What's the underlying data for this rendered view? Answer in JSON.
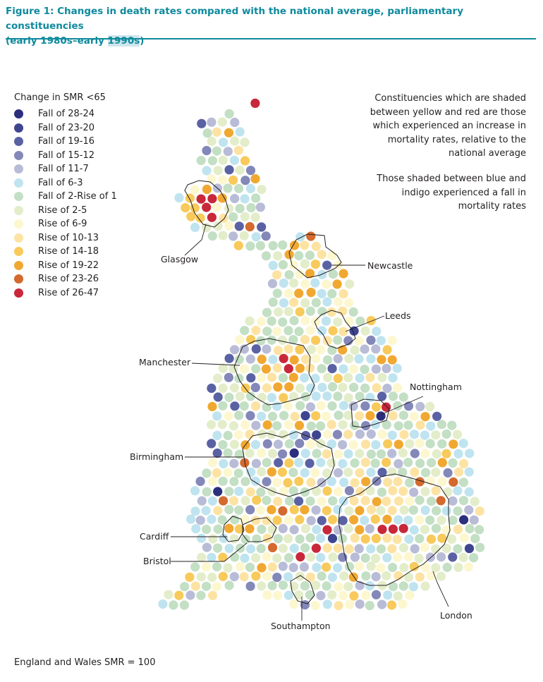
{
  "title": {
    "line1": "Figure 1: Changes in death rates compared with the national average, parliamentary constituencies",
    "line2_before": "(early 1980s–early ",
    "line2_highlight": "1990s",
    "line2_after": ")"
  },
  "legend": {
    "title": "Change in SMR <65",
    "items": [
      {
        "label": "Fall of 28-24",
        "color": "#2b2f7d"
      },
      {
        "label": "Fall of 23-20",
        "color": "#3e4590"
      },
      {
        "label": "Fall of 19-16",
        "color": "#5a62a3"
      },
      {
        "label": "Fall of 15-12",
        "color": "#8388b9"
      },
      {
        "label": "Fall of 11-7",
        "color": "#b9bcd6"
      },
      {
        "label": "Fall of 6-3",
        "color": "#bfe4ef"
      },
      {
        "label": "Fall of 2-Rise of 1",
        "color": "#c3dfc4"
      },
      {
        "label": "Rise of 2-5",
        "color": "#e3edca"
      },
      {
        "label": "Rise of 6-9",
        "color": "#fdf7cf"
      },
      {
        "label": "Rise of 10-13",
        "color": "#fde3a3"
      },
      {
        "label": "Rise of 14-18",
        "color": "#f8ca5b"
      },
      {
        "label": "Rise of 19-22",
        "color": "#f1a831"
      },
      {
        "label": "Rise of 23-26",
        "color": "#d46a2d"
      },
      {
        "label": "Rise of 26-47",
        "color": "#c8283a"
      }
    ]
  },
  "notes": {
    "increase": "Constituencies which are shaded between yellow and red are those which experienced an increase in mortality rates, relative to the national average",
    "fall": "Those shaded between blue and indigo experienced a fall in mortality rates"
  },
  "places": {
    "glasgow": "Glasgow",
    "newcastle": "Newcastle",
    "leeds": "Leeds",
    "manchester": "Manchester",
    "nottingham": "Nottingham",
    "birmingham": "Birmingham",
    "cardiff": "Cardiff",
    "bristol": "Bristol",
    "southampton": "Southampton",
    "london": "London"
  },
  "footnote": "England and Wales SMR = 100"
}
